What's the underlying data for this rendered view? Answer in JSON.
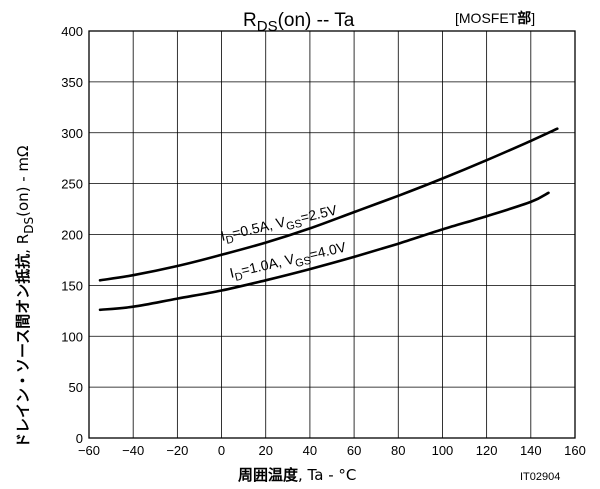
{
  "chart_data": {
    "type": "line",
    "title": {
      "main": "R",
      "sub": "DS",
      "rest": "(on)  --  Ta",
      "bracket_open": "[MOSFET",
      "bracket_bold": "部",
      "bracket_close": "]"
    },
    "xlabel": {
      "bold": "周囲温度",
      "rest": ",  Ta  -  °C"
    },
    "ylabel": {
      "bold": "ドレイン・ソース間オン抵抗",
      "mid": ",  R",
      "sub": "DS",
      "rest": "(on)  -  mΩ"
    },
    "figure_id": "IT02904",
    "xlim": [
      -60,
      160
    ],
    "ylim": [
      0,
      400
    ],
    "x_ticks": [
      "−60",
      "−40",
      "−20",
      "0",
      "20",
      "40",
      "60",
      "80",
      "100",
      "120",
      "140",
      "160"
    ],
    "y_ticks": [
      "0",
      "50",
      "100",
      "150",
      "200",
      "250",
      "300",
      "350",
      "400"
    ],
    "x_tick_values": [
      -60,
      -40,
      -20,
      0,
      20,
      40,
      60,
      80,
      100,
      120,
      140,
      160
    ],
    "y_tick_values": [
      0,
      50,
      100,
      150,
      200,
      250,
      300,
      350,
      400
    ],
    "grid": true,
    "series": [
      {
        "label_parts": [
          "I",
          "D",
          "=0.5A, V",
          "GS",
          "=2.5V"
        ],
        "x": [
          -55,
          -40,
          -20,
          0,
          20,
          40,
          60,
          80,
          100,
          120,
          140,
          152
        ],
        "y": [
          155,
          160,
          169,
          180,
          192,
          206,
          222,
          238,
          255,
          273,
          292,
          304
        ]
      },
      {
        "label_parts": [
          "I",
          "D",
          "=1.0A, V",
          "GS",
          "=4.0V"
        ],
        "x": [
          -55,
          -40,
          -20,
          0,
          20,
          40,
          60,
          80,
          100,
          120,
          140,
          148
        ],
        "y": [
          126,
          129,
          137,
          145,
          155,
          166,
          178,
          191,
          205,
          218,
          232,
          241
        ]
      }
    ]
  }
}
